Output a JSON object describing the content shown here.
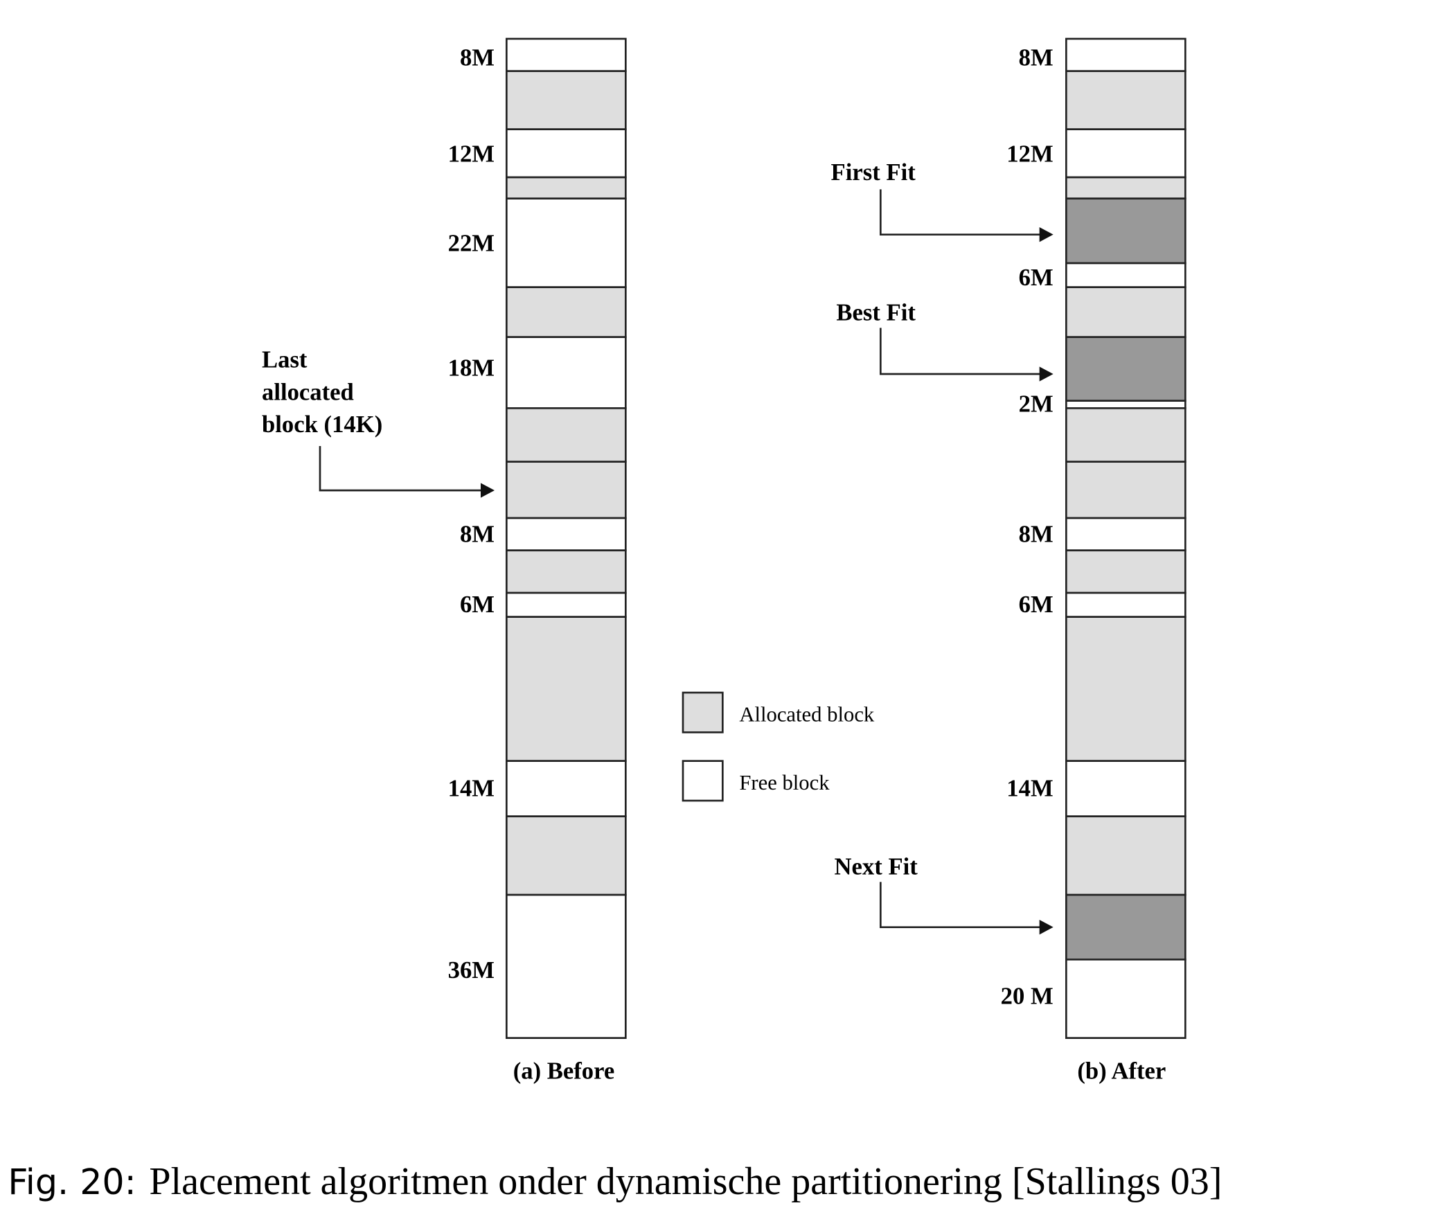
{
  "before": {
    "title": "(a) Before",
    "labels": [
      "8M",
      "12M",
      "22M",
      "18M",
      "8M",
      "6M",
      "14M",
      "36M"
    ]
  },
  "after": {
    "title": "(b) After",
    "labels": [
      "8M",
      "12M",
      "6M",
      "2M",
      "8M",
      "6M",
      "14M",
      "20 M"
    ]
  },
  "pointers": {
    "last": [
      "Last",
      "allocated",
      "block (14K)"
    ],
    "first_fit": "First Fit",
    "best_fit": "Best Fit",
    "next_fit": "Next Fit"
  },
  "legend": {
    "allocated": "Allocated block",
    "free": "Free block"
  },
  "caption": {
    "label": "Fig. 20:",
    "text": "Placement algoritmen onder dynamische partitionering [Stallings 03]"
  }
}
